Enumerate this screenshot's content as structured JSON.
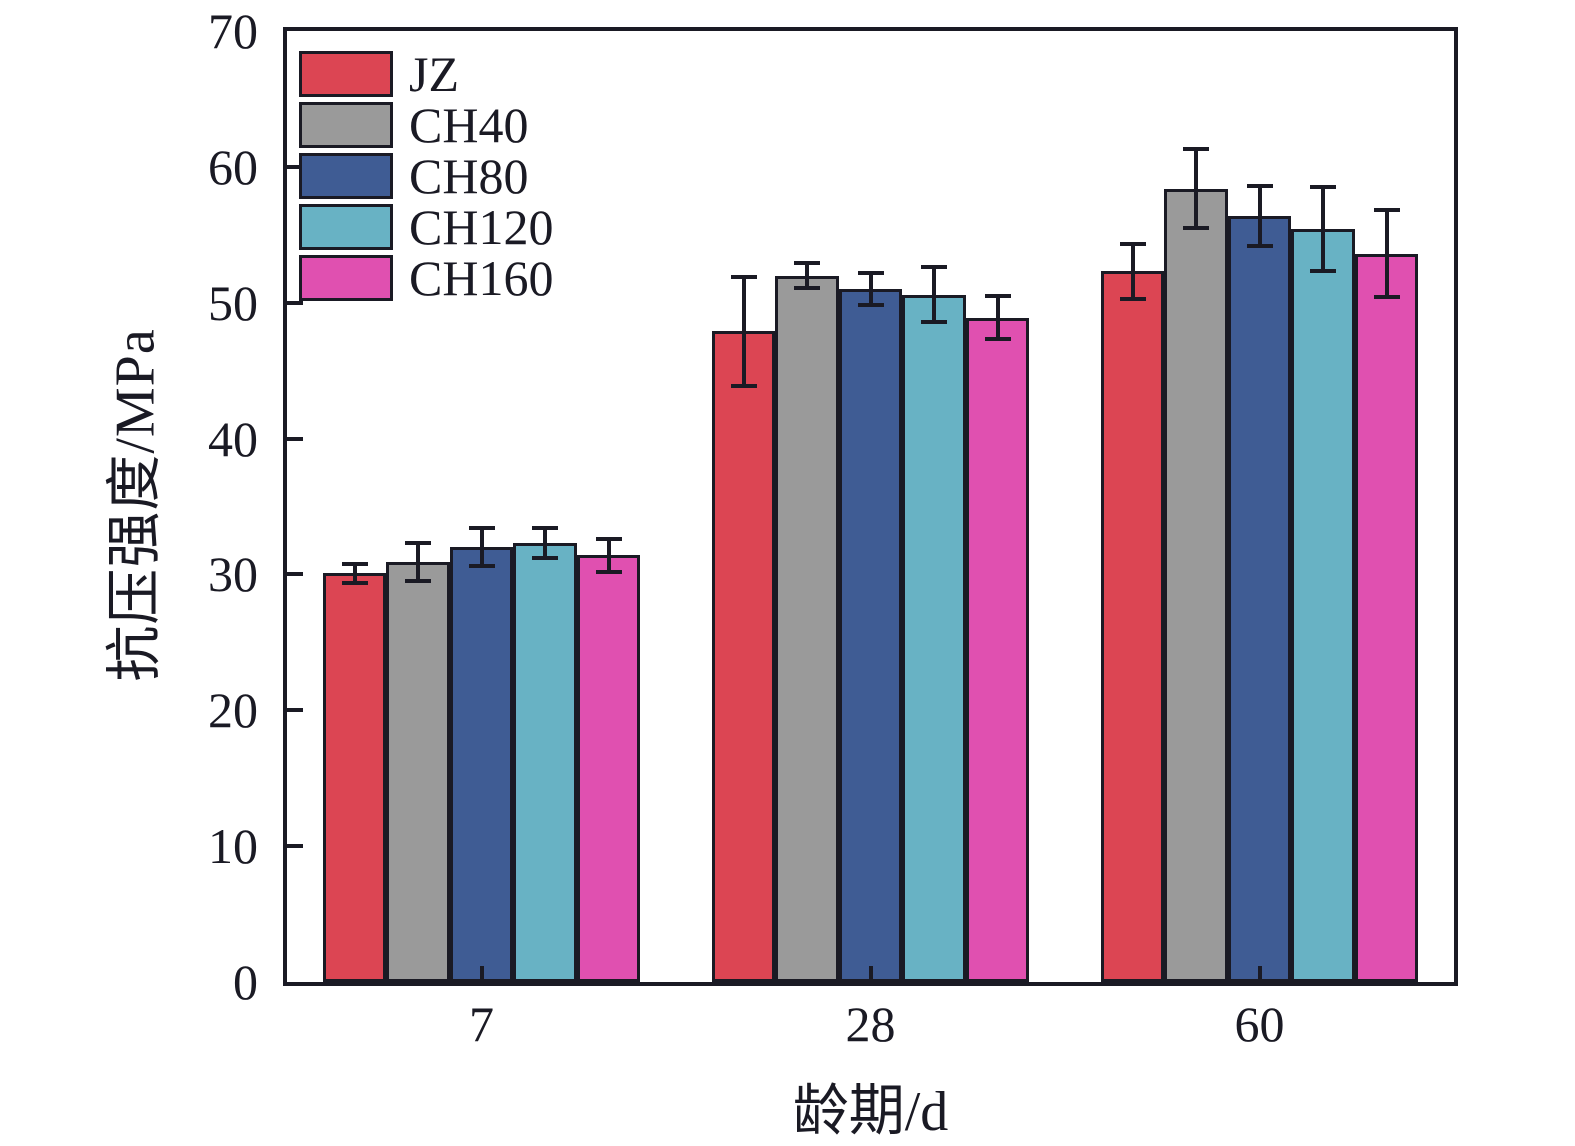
{
  "chart_data": {
    "type": "bar",
    "title": "",
    "xlabel": "龄期/d",
    "ylabel": "抗压强度/MPa",
    "categories": [
      "7",
      "28",
      "60"
    ],
    "yticks": [
      0,
      10,
      20,
      30,
      40,
      50,
      60,
      70
    ],
    "ylim": [
      0,
      70
    ],
    "grid": false,
    "legend_position": "upper-left",
    "axis_color": "#1a1a24",
    "bar_edge_color": "#1a1a24",
    "error_bar_color": "#1a1a24",
    "series": [
      {
        "name": "JZ",
        "color": "#dc4553",
        "values": [
          30.1,
          47.9,
          52.3
        ],
        "errors": [
          0.7,
          4.0,
          2.0
        ]
      },
      {
        "name": "CH40",
        "color": "#9a9a9a",
        "values": [
          30.9,
          52.0,
          58.4
        ],
        "errors": [
          1.4,
          0.9,
          2.9
        ]
      },
      {
        "name": "CH80",
        "color": "#3f5c94",
        "values": [
          32.0,
          51.0,
          56.4
        ],
        "errors": [
          1.4,
          1.2,
          2.2
        ]
      },
      {
        "name": "CH120",
        "color": "#68b2c4",
        "values": [
          32.3,
          50.6,
          55.4
        ],
        "errors": [
          1.1,
          2.0,
          3.1
        ]
      },
      {
        "name": "CH160",
        "color": "#e050b0",
        "values": [
          31.4,
          48.9,
          53.6
        ],
        "errors": [
          1.2,
          1.6,
          3.2
        ]
      }
    ]
  }
}
